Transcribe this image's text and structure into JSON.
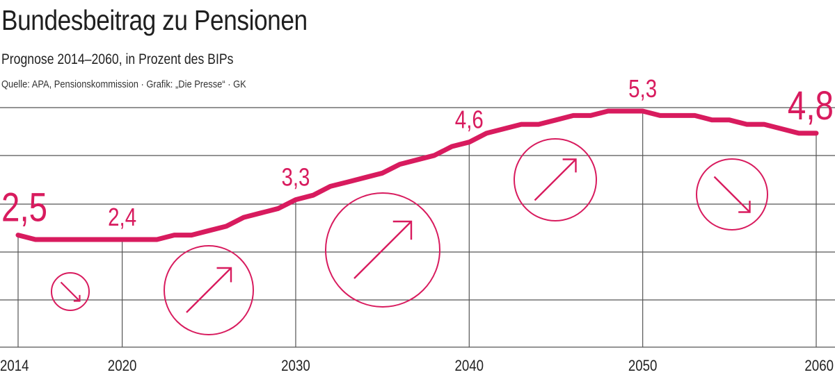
{
  "header": {
    "title": "Bundesbeitrag zu Pensionen",
    "subtitle": "Prognose 2014–2060, in Prozent des BIPs",
    "source": "Quelle: APA, Pensionskommission · Grafik: „Die Presse“ · GK"
  },
  "colors": {
    "line": "#d81b5e",
    "grid": "#555555",
    "arrow": "#d81b5e"
  },
  "chart_data": {
    "type": "line",
    "title": "Bundesbeitrag zu Pensionen",
    "subtitle": "Prognose 2014–2060, in Prozent des BIPs",
    "xlabel": "",
    "ylabel": "",
    "xlim": [
      2014,
      2060
    ],
    "ylim": [
      0.9,
      5.6
    ],
    "x_ticks": [
      "2014",
      "2020",
      "2030",
      "2040",
      "2050",
      "2060"
    ],
    "grid": true,
    "series": [
      {
        "x": [
          2014,
          2015,
          2016,
          2017,
          2018,
          2019,
          2020,
          2021,
          2022,
          2023,
          2024,
          2025,
          2026,
          2027,
          2028,
          2029,
          2030,
          2031,
          2032,
          2033,
          2034,
          2035,
          2036,
          2037,
          2038,
          2039,
          2040,
          2041,
          2042,
          2043,
          2044,
          2045,
          2046,
          2047,
          2048,
          2049,
          2050,
          2051,
          2052,
          2053,
          2054,
          2055,
          2056,
          2057,
          2058,
          2059,
          2060
        ],
        "values": [
          2.5,
          2.4,
          2.4,
          2.4,
          2.4,
          2.4,
          2.4,
          2.4,
          2.4,
          2.5,
          2.5,
          2.6,
          2.7,
          2.9,
          3.0,
          3.1,
          3.3,
          3.4,
          3.6,
          3.7,
          3.8,
          3.9,
          4.1,
          4.2,
          4.3,
          4.5,
          4.6,
          4.8,
          4.9,
          5.0,
          5.0,
          5.1,
          5.2,
          5.2,
          5.3,
          5.3,
          5.3,
          5.2,
          5.2,
          5.2,
          5.1,
          5.1,
          5.0,
          5.0,
          4.9,
          4.8,
          4.8
        ]
      }
    ],
    "data_labels": [
      {
        "x": 2014,
        "text": "2,5"
      },
      {
        "x": 2020,
        "text": "2,4"
      },
      {
        "x": 2030,
        "text": "3,3"
      },
      {
        "x": 2040,
        "text": "4,6"
      },
      {
        "x": 2050,
        "text": "5,3"
      },
      {
        "x": 2060,
        "text": "4,8"
      }
    ],
    "trend_indicators": [
      {
        "decade": "2014–2020",
        "direction": "down",
        "size": "small"
      },
      {
        "decade": "2020–2030",
        "direction": "up",
        "size": "medium"
      },
      {
        "decade": "2030–2040",
        "direction": "up",
        "size": "large"
      },
      {
        "decade": "2040–2050",
        "direction": "up",
        "size": "medium"
      },
      {
        "decade": "2050–2060",
        "direction": "down",
        "size": "medium"
      }
    ]
  }
}
